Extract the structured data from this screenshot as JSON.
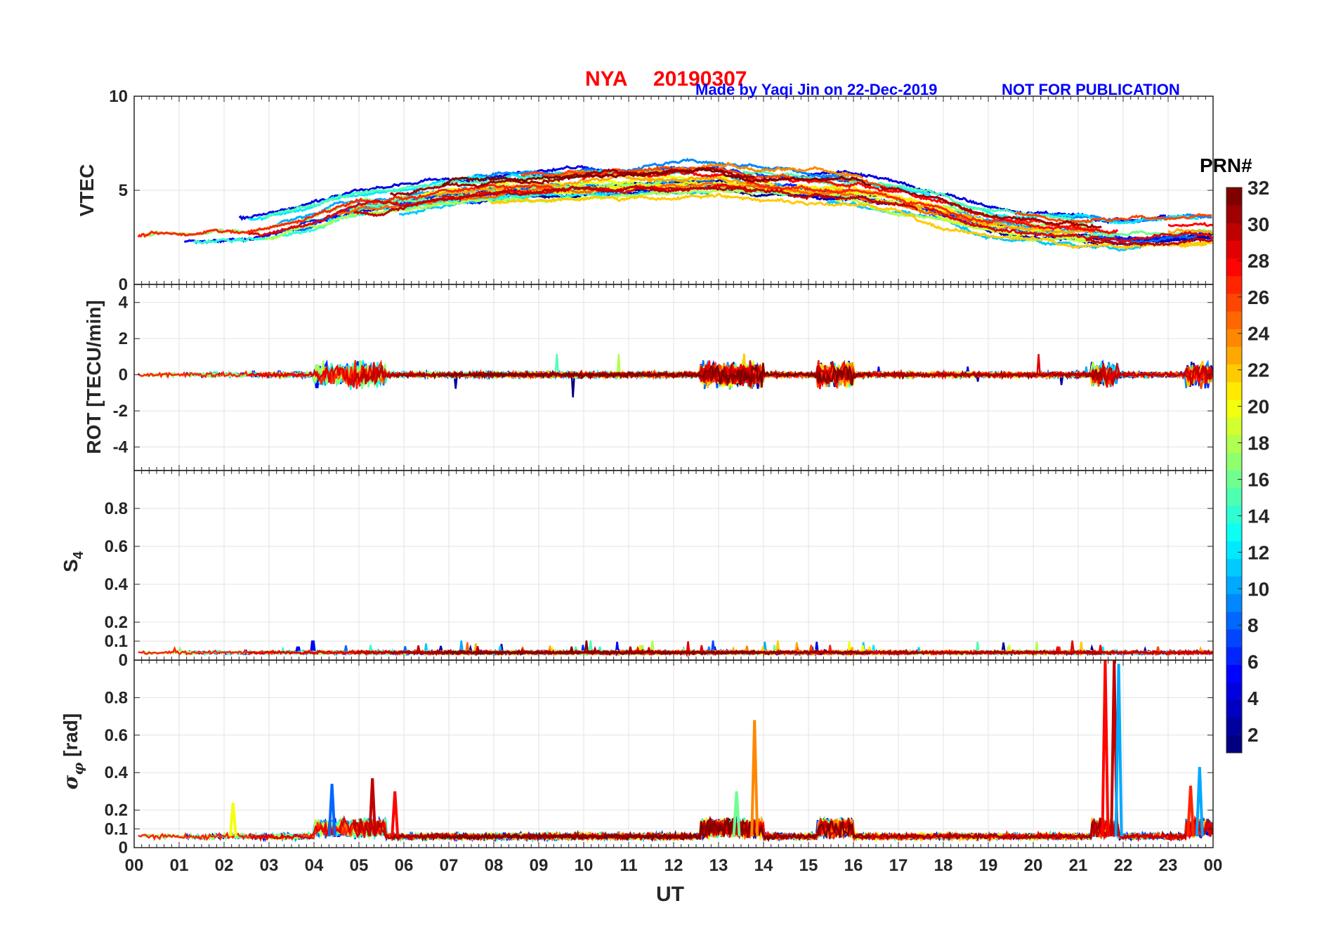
{
  "header": {
    "station": "NYA",
    "date": "20190307",
    "credit": "Made by Yaqi Jin on 22-Dec-2019",
    "notice": "NOT FOR PUBLICATION",
    "station_color": "#ff0000",
    "credit_color": "#0000ff"
  },
  "chart_data": [
    {
      "type": "line",
      "panel": "vtec",
      "ylabel": "VTEC",
      "ylim": [
        0,
        10
      ],
      "yticks": [
        0,
        5,
        10
      ],
      "ytick_labels": [
        "0",
        "5",
        "10"
      ],
      "grid": true,
      "series_summary": {
        "x_hours": [
          0,
          1,
          2,
          3,
          4,
          5,
          6,
          7,
          8,
          9,
          10,
          11,
          12,
          13,
          14,
          15,
          16,
          17,
          18,
          19,
          20,
          21,
          22,
          23,
          24
        ],
        "typical_vtec": [
          2.5,
          2.6,
          2.7,
          3.0,
          3.6,
          4.3,
          4.5,
          4.9,
          5.1,
          5.2,
          5.3,
          5.4,
          5.5,
          5.6,
          5.3,
          5.1,
          5.0,
          4.6,
          4.0,
          3.3,
          3.0,
          2.8,
          2.6,
          2.8,
          2.9
        ]
      }
    },
    {
      "type": "line",
      "panel": "rot",
      "ylabel": "ROT [TECU/min]",
      "ylim": [
        -5.3,
        5
      ],
      "yticks": [
        -4,
        -2,
        0,
        2,
        4
      ],
      "ytick_labels": [
        "-4",
        "-2",
        "0",
        "2",
        "4"
      ],
      "grid": true,
      "activity_hours": [
        [
          4.0,
          5.6
        ],
        [
          12.6,
          14.0
        ],
        [
          15.2,
          16.0
        ],
        [
          21.3,
          21.9
        ],
        [
          23.4,
          24.0
        ]
      ]
    },
    {
      "type": "line",
      "panel": "s4",
      "ylabel_main": "S",
      "ylabel_sub": "4",
      "ylim": [
        0,
        1
      ],
      "yticks": [
        0,
        0.1,
        0.2,
        0.4,
        0.6,
        0.8
      ],
      "ytick_labels": [
        "0",
        "0.1",
        "0.2",
        "0.4",
        "0.6",
        "0.8"
      ],
      "grid": true,
      "baseline": 0.04
    },
    {
      "type": "line",
      "panel": "sigma_phi",
      "ylabel_main": "σ",
      "ylabel_sub": "φ",
      "ylabel_unit": "[rad]",
      "ylim": [
        0,
        1
      ],
      "yticks": [
        0,
        0.1,
        0.2,
        0.4,
        0.6,
        0.8
      ],
      "ytick_labels": [
        "0",
        "0.1",
        "0.2",
        "0.4",
        "0.6",
        "0.8"
      ],
      "grid": true,
      "baseline": 0.06,
      "spikes": [
        {
          "x": 4.4,
          "y": 0.34,
          "prn": 8
        },
        {
          "x": 5.3,
          "y": 0.37,
          "prn": 30
        },
        {
          "x": 5.8,
          "y": 0.3,
          "prn": 28
        },
        {
          "x": 13.8,
          "y": 0.68,
          "prn": 24
        },
        {
          "x": 21.6,
          "y": 1.0,
          "prn": 28
        },
        {
          "x": 21.8,
          "y": 1.0,
          "prn": 30
        },
        {
          "x": 21.9,
          "y": 0.98,
          "prn": 10
        },
        {
          "x": 23.5,
          "y": 0.33,
          "prn": 27
        },
        {
          "x": 23.7,
          "y": 0.43,
          "prn": 10
        },
        {
          "x": 2.2,
          "y": 0.24,
          "prn": 20
        },
        {
          "x": 13.4,
          "y": 0.3,
          "prn": 16
        }
      ]
    }
  ],
  "x_axis": {
    "label": "UT",
    "range": [
      0,
      24
    ],
    "tick_labels": [
      "00",
      "01",
      "02",
      "03",
      "04",
      "05",
      "06",
      "07",
      "08",
      "09",
      "10",
      "11",
      "12",
      "13",
      "14",
      "15",
      "16",
      "17",
      "18",
      "19",
      "20",
      "21",
      "22",
      "23",
      "00"
    ]
  },
  "colorbar": {
    "title": "PRN#",
    "range": [
      1,
      32
    ],
    "tick_values": [
      2,
      4,
      6,
      8,
      10,
      12,
      14,
      16,
      18,
      20,
      22,
      24,
      26,
      28,
      30,
      32
    ],
    "tick_labels": [
      "2",
      "4",
      "6",
      "8",
      "10",
      "12",
      "14",
      "16",
      "18",
      "20",
      "22",
      "24",
      "26",
      "28",
      "30",
      "32"
    ],
    "colormap": "jet"
  }
}
